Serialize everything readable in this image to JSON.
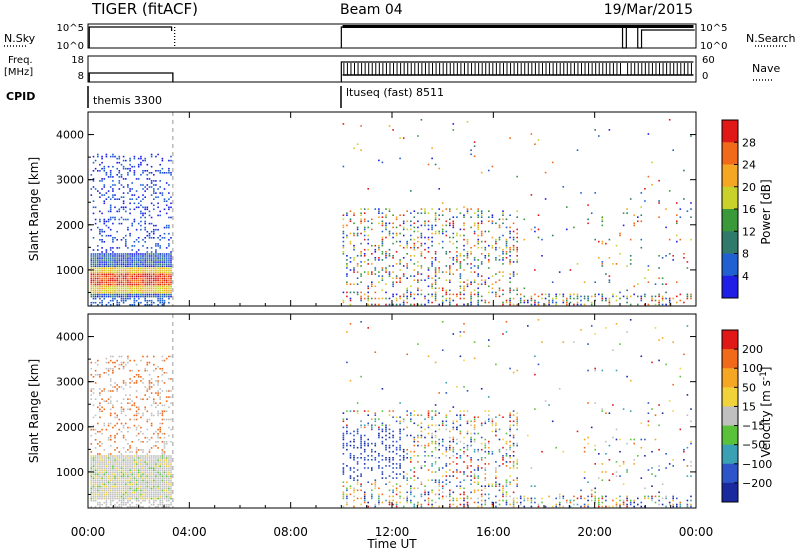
{
  "header": {
    "radar": "TIGER (fitACF)",
    "beam": "Beam 04",
    "date": "19/Mar/2015"
  },
  "top_panels": {
    "nsky_label": "N.Sky",
    "nsky_ticks": [
      "10^5",
      "10^0"
    ],
    "nsearch_label": "N.Search",
    "nsearch_ticks": [
      "10^5",
      "10^0"
    ],
    "freq_label": "Freq.",
    "freq_unit": "[MHz]",
    "freq_ticks": [
      "18",
      "8"
    ],
    "nave_label": "Nave",
    "nave_ticks": [
      "60",
      "0"
    ],
    "cpid_label": "CPID",
    "cpid_modes": [
      "themis 3300",
      "ltuseq (fast) 8511"
    ]
  },
  "colors": {
    "power": [
      "#1e1ee6",
      "#2060d0",
      "#2f7a6a",
      "#3a9a3a",
      "#c8d22a",
      "#f5a623",
      "#f06a1a",
      "#e01818"
    ],
    "velocity": [
      "#1a2a9e",
      "#2d54c8",
      "#3aa0b4",
      "#5ac23a",
      "#c0c0c0",
      "#f2d23a",
      "#f5a623",
      "#f06a1a",
      "#e01818"
    ]
  },
  "chart_data": [
    {
      "type": "scatter",
      "name": "power",
      "xlabel": "",
      "ylabel": "Slant Range [km]",
      "xlim": [
        0,
        24
      ],
      "ylim": [
        200,
        4500
      ],
      "y_ticks": [
        1000,
        2000,
        3000,
        4000
      ],
      "colorbar": {
        "label": "Power [dB]",
        "ticks": [
          "28",
          "24",
          "20",
          "16",
          "12",
          "8",
          "4"
        ],
        "range": [
          0,
          32
        ]
      }
    },
    {
      "type": "scatter",
      "name": "velocity",
      "xlabel": "Time UT",
      "ylabel": "Slant Range [km]",
      "xlim": [
        0,
        24
      ],
      "ylim": [
        200,
        4500
      ],
      "x_tick_labels": [
        "00:00",
        "04:00",
        "08:00",
        "12:00",
        "16:00",
        "20:00",
        "00:00"
      ],
      "y_ticks": [
        1000,
        2000,
        3000,
        4000
      ],
      "colorbar": {
        "label": "Velocity [m s",
        "label_sup": "-1",
        "label_end": "]",
        "ticks": [
          "200",
          "100",
          "50",
          "15",
          "−15",
          "−50",
          "−100",
          "−200"
        ]
      }
    }
  ]
}
